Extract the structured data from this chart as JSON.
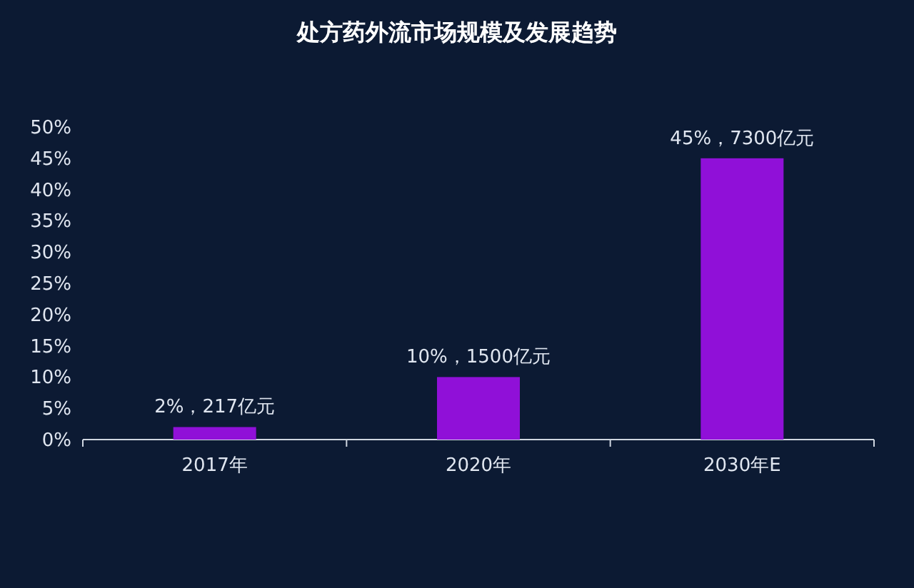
{
  "chart_data": {
    "type": "bar",
    "title": "处方药外流市场规模及发展趋势",
    "categories": [
      "2017年",
      "2020年",
      "2030年E"
    ],
    "values": [
      2,
      10,
      45
    ],
    "value_labels": [
      "2%，217亿元",
      "10%，1500亿元",
      "45%，7300亿元"
    ],
    "color": "#9010d8",
    "ylim": [
      0,
      50
    ],
    "yticks": [
      {
        "value": 0,
        "label": "0%"
      },
      {
        "value": 5,
        "label": "5%"
      },
      {
        "value": 10,
        "label": "10%"
      },
      {
        "value": 15,
        "label": "15%"
      },
      {
        "value": 20,
        "label": "20%"
      },
      {
        "value": 25,
        "label": "25%"
      },
      {
        "value": 30,
        "label": "30%"
      },
      {
        "value": 35,
        "label": "35%"
      },
      {
        "value": 40,
        "label": "40%"
      },
      {
        "value": 45,
        "label": "45%"
      },
      {
        "value": 50,
        "label": "50%"
      }
    ]
  }
}
